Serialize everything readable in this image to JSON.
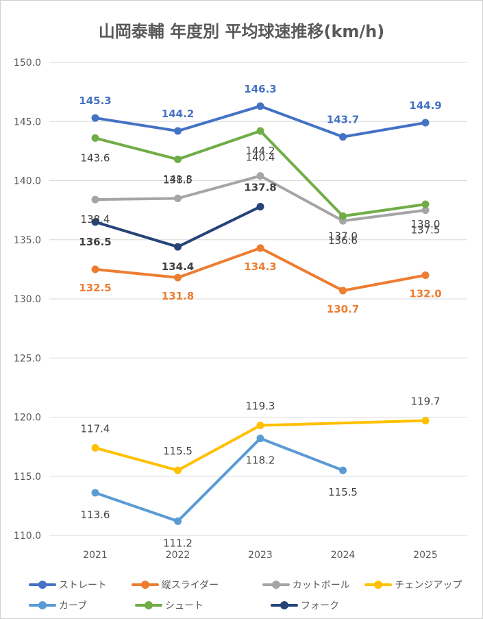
{
  "chart_data": {
    "type": "line",
    "title": "山岡泰輔 年度別 平均球速推移(km/h)",
    "categories": [
      "2021",
      "2022",
      "2023",
      "2024",
      "2025"
    ],
    "y_ticks": [
      "150.0",
      "145.0",
      "140.0",
      "135.0",
      "130.0",
      "125.0",
      "120.0",
      "115.0",
      "110.0"
    ],
    "ylim": [
      110,
      150
    ],
    "grid": true,
    "legend_position": "bottom",
    "series": [
      {
        "name": "ストレート",
        "color": "#4472C4",
        "bold_labels": true,
        "values": [
          145.3,
          144.2,
          146.3,
          143.7,
          144.9
        ],
        "labels": [
          "145.3",
          "144.2",
          "146.3",
          "143.7",
          "144.9"
        ]
      },
      {
        "name": "縦スライダー",
        "color": "#ED7D31",
        "bold_labels": true,
        "values": [
          132.5,
          131.8,
          134.3,
          130.7,
          132.0
        ],
        "labels": [
          "132.5",
          "131.8",
          "134.3",
          "130.7",
          "132.0"
        ]
      },
      {
        "name": "カットボール",
        "color": "#A5A5A5",
        "bold_labels": false,
        "values": [
          138.4,
          138.5,
          140.4,
          136.6,
          137.5
        ],
        "labels": [
          "138.4",
          "138.5",
          "140.4",
          "136.6",
          "137.5"
        ]
      },
      {
        "name": "チェンジアップ",
        "color": "#FFC000",
        "bold_labels": false,
        "values": [
          117.4,
          115.5,
          119.3,
          null,
          119.7
        ],
        "labels": [
          "117.4",
          "115.5",
          "119.3",
          null,
          "119.7"
        ]
      },
      {
        "name": "カーブ",
        "color": "#5B9BD5",
        "bold_labels": false,
        "values": [
          113.6,
          111.2,
          118.2,
          115.5,
          null
        ],
        "labels": [
          "113.6",
          "111.2",
          "118.2",
          "115.5",
          null
        ]
      },
      {
        "name": "シュート",
        "color": "#70AD47",
        "bold_labels": false,
        "values": [
          143.6,
          141.8,
          144.2,
          137.0,
          138.0
        ],
        "labels": [
          "143.6",
          "141.8",
          "144.2",
          "137.0",
          "138.0"
        ]
      },
      {
        "name": "フォーク",
        "color": "#264478",
        "bold_labels": true,
        "values": [
          136.5,
          134.4,
          137.8,
          null,
          null
        ],
        "labels": [
          "136.5",
          "134.4",
          "137.8",
          null,
          null
        ]
      }
    ]
  }
}
